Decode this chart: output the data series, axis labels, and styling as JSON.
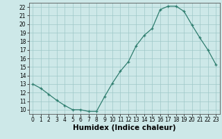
{
  "x": [
    0,
    1,
    2,
    3,
    4,
    5,
    6,
    7,
    8,
    9,
    10,
    11,
    12,
    13,
    14,
    15,
    16,
    17,
    18,
    19,
    20,
    21,
    22,
    23
  ],
  "y": [
    13,
    12.5,
    11.8,
    11.1,
    10.5,
    10.0,
    10.0,
    9.8,
    9.8,
    11.5,
    13.1,
    14.5,
    15.6,
    17.5,
    18.7,
    19.5,
    21.7,
    22.1,
    22.1,
    21.5,
    19.9,
    18.4,
    17.0,
    15.3
  ],
  "xlabel": "Humidex (Indice chaleur)",
  "xlim": [
    -0.5,
    23.5
  ],
  "ylim": [
    9.5,
    22.5
  ],
  "yticks": [
    10,
    11,
    12,
    13,
    14,
    15,
    16,
    17,
    18,
    19,
    20,
    21,
    22
  ],
  "xticks": [
    0,
    1,
    2,
    3,
    4,
    5,
    6,
    7,
    8,
    9,
    10,
    11,
    12,
    13,
    14,
    15,
    16,
    17,
    18,
    19,
    20,
    21,
    22,
    23
  ],
  "line_color": "#2e7d6e",
  "bg_color": "#cde8e8",
  "grid_color": "#9fc8c8",
  "tick_label_fontsize": 5.5,
  "xlabel_fontsize": 7.5
}
